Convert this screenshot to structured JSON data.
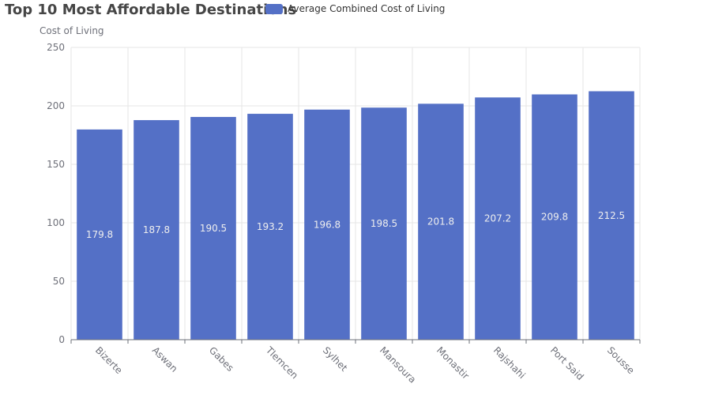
{
  "chart_data": {
    "type": "bar",
    "title": "Top 10 Most Affordable Destinations",
    "ylabel": "Cost of Living",
    "xlabel": "",
    "ylim": [
      0,
      250
    ],
    "yticks": [
      0,
      50,
      100,
      150,
      200,
      250
    ],
    "categories": [
      "Bizerte",
      "Aswan",
      "Gabes",
      "Tlemcen",
      "Sylhet",
      "Mansoura",
      "Monastir",
      "Rajshahi",
      "Port Said",
      "Sousse"
    ],
    "series": [
      {
        "name": "Average Combined Cost of Living",
        "values": [
          179.8,
          187.8,
          190.5,
          193.2,
          196.8,
          198.5,
          201.8,
          207.2,
          209.8,
          212.5
        ]
      }
    ],
    "grid": true,
    "legend_position": "top-center",
    "bar_color": "#5470c6"
  }
}
